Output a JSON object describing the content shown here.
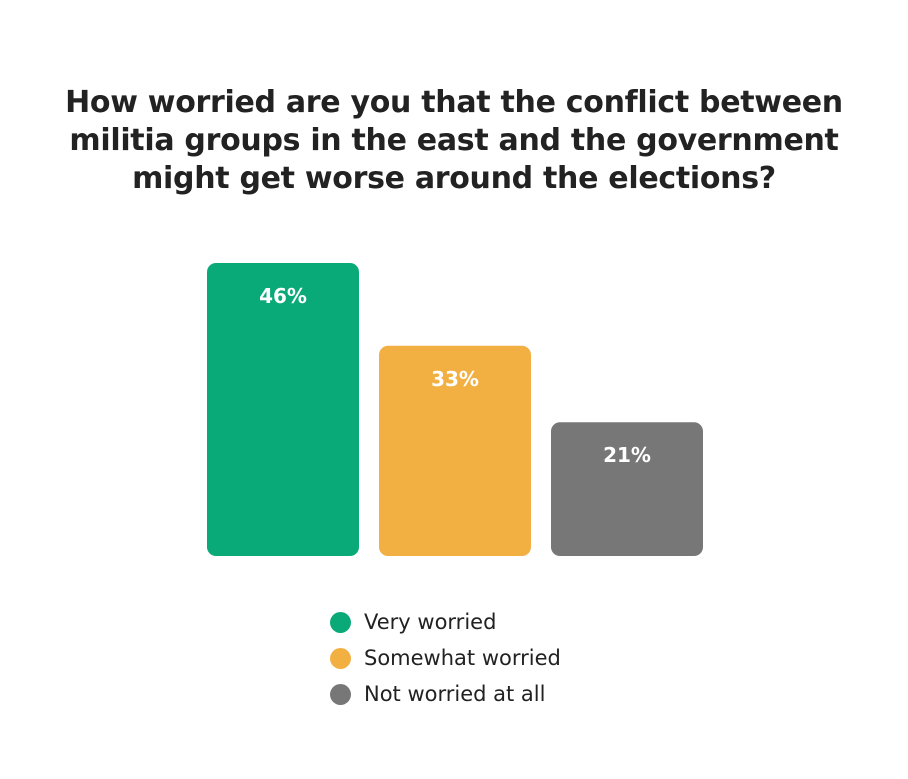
{
  "chart_data": {
    "type": "bar",
    "title_lines": [
      "How worried are you that the conflict between",
      "militia groups in the east and the government",
      "might get worse around the elections?"
    ],
    "title": "How worried are you that the conflict between militia groups in the east and the government might get worse around the elections?",
    "categories": [
      "Very worried",
      "Somewhat worried",
      "Not worried at all"
    ],
    "values": [
      46,
      33,
      21
    ],
    "value_labels": [
      "46%",
      "33%",
      "21%"
    ],
    "colors": [
      "#0aaa78",
      "#f2b043",
      "#777777"
    ],
    "ylim": [
      0,
      46
    ],
    "grid": false,
    "legend_position": "bottom-center"
  }
}
